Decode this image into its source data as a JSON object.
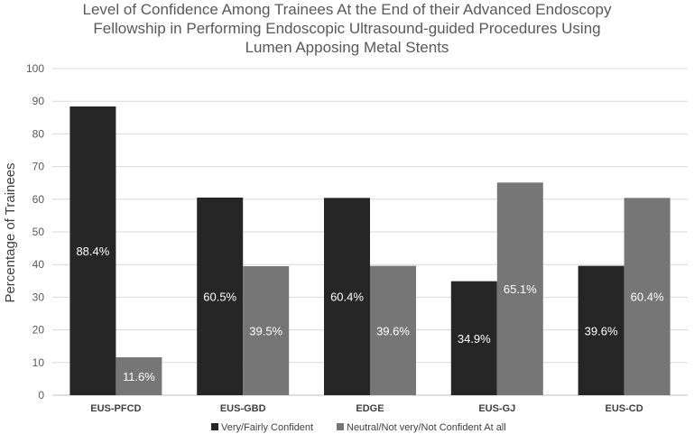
{
  "chart_data": {
    "type": "bar",
    "title_lines": [
      "Level of Confidence Among Trainees At the End of their Advanced Endoscopy",
      "Fellowship in Performing Endoscopic Ultrasound-guided Procedures Using",
      "Lumen Apposing Metal Stents"
    ],
    "xlabel": "",
    "ylabel": "Percentage of Trainees",
    "ylim": [
      0,
      100
    ],
    "yticks": [
      0,
      10,
      20,
      30,
      40,
      50,
      60,
      70,
      80,
      90,
      100
    ],
    "grid": true,
    "legend_position": "bottom",
    "categories": [
      "EUS-PFCD",
      "EUS-GBD",
      "EDGE",
      "EUS-GJ",
      "EUS-CD"
    ],
    "series": [
      {
        "name": "Very/Fairly Confident",
        "color": "#262626",
        "values": [
          88.4,
          60.5,
          60.4,
          34.9,
          39.6
        ],
        "labels": [
          "88.4%",
          "60.5%",
          "60.4%",
          "34.9%",
          "39.6%"
        ]
      },
      {
        "name": "Neutral/Not very/Not Confident At all",
        "color": "#767676",
        "values": [
          11.6,
          39.5,
          39.6,
          65.1,
          60.4
        ],
        "labels": [
          "11.6%",
          "39.5%",
          "39.6%",
          "65.1%",
          "60.4%"
        ]
      }
    ]
  }
}
